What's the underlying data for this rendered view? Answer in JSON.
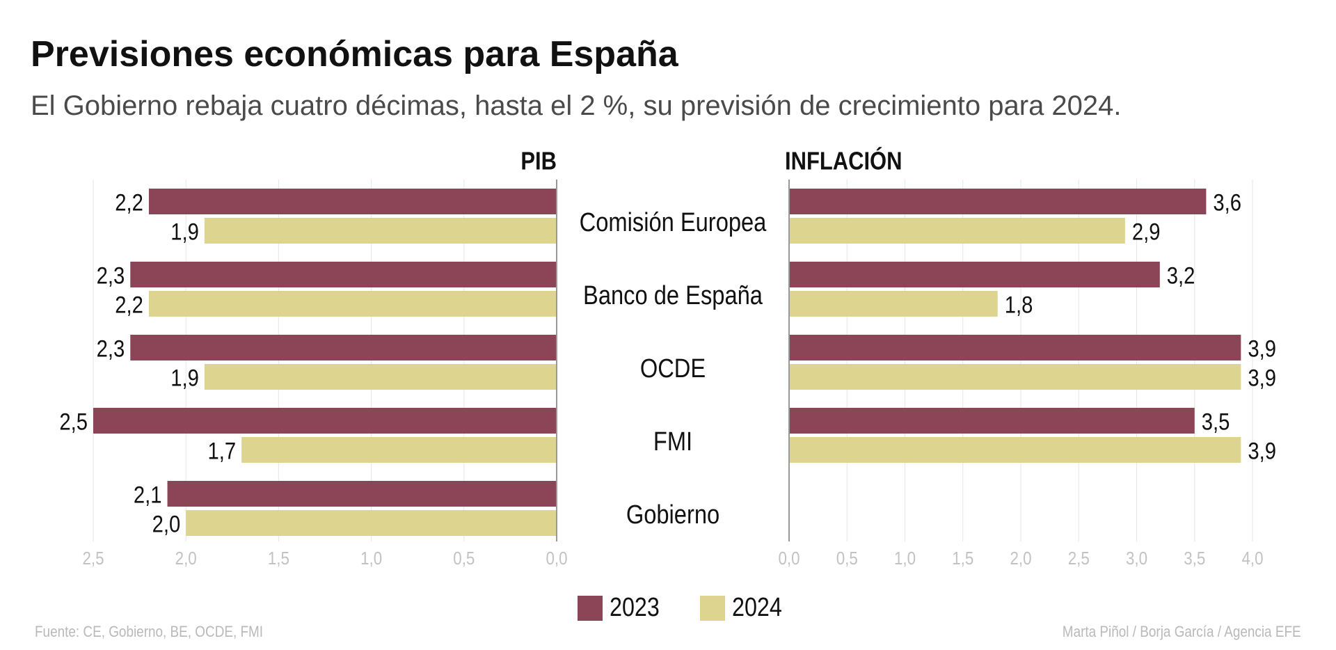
{
  "title": "Previsiones económicas para España",
  "subtitle": "El Gobierno rebaja cuatro décimas, hasta el 2 %, su previsión de crecimiento para 2024.",
  "colors": {
    "2023": "#8c4457",
    "2024": "#dcd48f",
    "axis": "#999999",
    "grid": "#e6e6e6",
    "tick": "#c2c2c2"
  },
  "legend": {
    "item1": "2023",
    "item2": "2024"
  },
  "footer": {
    "source": "Fuente: CE, Gobierno, BE, OCDE, FMI",
    "credit": "Marta Piñol / Borja García / Agencia EFE"
  },
  "chart_data": [
    {
      "type": "bar",
      "orientation": "horizontal",
      "direction": "reversed",
      "title": "PIB",
      "categories": [
        "Comisión Europea",
        "Banco de España",
        "OCDE",
        "FMI",
        "Gobierno"
      ],
      "series": [
        {
          "name": "2023",
          "values": [
            2.2,
            2.3,
            2.3,
            2.5,
            2.1
          ],
          "labels": [
            "2,2",
            "2,3",
            "2,3",
            "2,5",
            "2,1"
          ]
        },
        {
          "name": "2024",
          "values": [
            1.9,
            2.2,
            1.9,
            1.7,
            2.0
          ],
          "labels": [
            "1,9",
            "2,2",
            "1,9",
            "1,7",
            "2,0"
          ]
        }
      ],
      "xlim": [
        0,
        2.5
      ],
      "ticks": [
        2.5,
        2.0,
        1.5,
        1.0,
        0.5,
        0.0
      ],
      "tick_labels": [
        "2,5",
        "2,0",
        "1,5",
        "1,0",
        "0,5",
        "0,0"
      ],
      "grid": true
    },
    {
      "type": "bar",
      "orientation": "horizontal",
      "title": "INFLACIÓN",
      "categories": [
        "Comisión Europea",
        "Banco de España",
        "OCDE",
        "FMI",
        "Gobierno"
      ],
      "series": [
        {
          "name": "2023",
          "values": [
            3.6,
            3.2,
            3.9,
            3.5,
            null
          ],
          "labels": [
            "3,6",
            "3,2",
            "3,9",
            "3,5",
            null
          ]
        },
        {
          "name": "2024",
          "values": [
            2.9,
            1.8,
            3.9,
            3.9,
            null
          ],
          "labels": [
            "2,9",
            "1,8",
            "3,9",
            "3,9",
            null
          ]
        }
      ],
      "xlim": [
        0,
        4.0
      ],
      "ticks": [
        0.0,
        0.5,
        1.0,
        1.5,
        2.0,
        2.5,
        3.0,
        3.5,
        4.0
      ],
      "tick_labels": [
        "0,0",
        "0,5",
        "1,0",
        "1,5",
        "2,0",
        "2,5",
        "3,0",
        "3,5",
        "4,0"
      ],
      "grid": true
    }
  ]
}
